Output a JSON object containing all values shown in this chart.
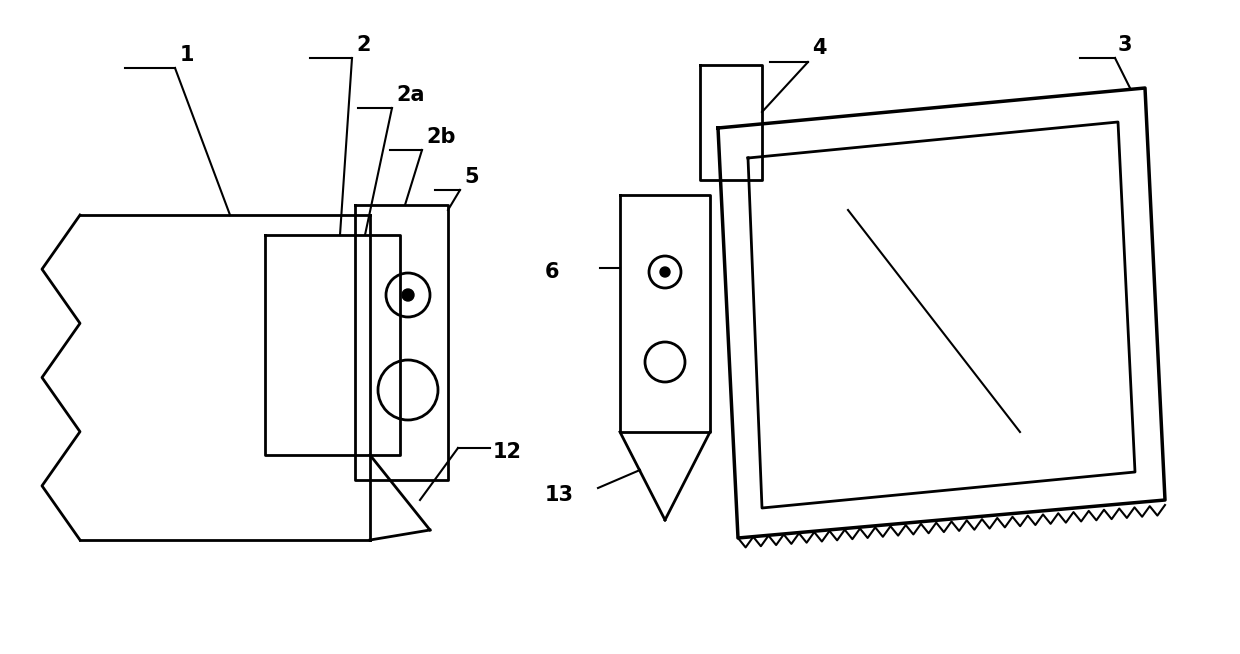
{
  "fig_width": 12.4,
  "fig_height": 6.54,
  "dpi": 100,
  "bg_color": "#ffffff",
  "lc": "#000000",
  "lw": 2.0,
  "lw_thin": 1.5,
  "lw_thick": 2.5,
  "label_fontsize": 15,
  "label_fontweight": "bold",
  "label_fontstyle": "normal"
}
